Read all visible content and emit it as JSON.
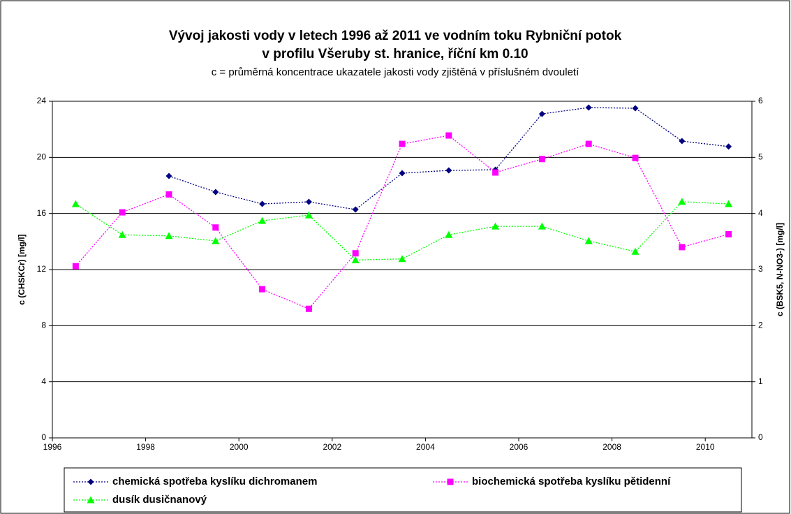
{
  "chart_data": {
    "type": "line",
    "title": "Vývoj jakosti vody v letech 1996 až 2011 ve vodním toku Rybniční potok",
    "title2": "v profilu Všeruby st. hranice, říční km 0.10",
    "subtitle": "c = průměrná koncentrace ukazatele jakosti vody zjištěná v příslušném dvouletí",
    "ylabel": "c (CHSKCr) [mg/l]",
    "y2label": "c (BSK5, N-NO3-) [mg/l]",
    "x": [
      1996.5,
      1997.5,
      1998.5,
      1999.5,
      2000.5,
      2001.5,
      2002.5,
      2003.5,
      2004.5,
      2005.5,
      2006.5,
      2007.5,
      2008.5,
      2009.5,
      2010.5
    ],
    "xlim": [
      1996,
      2011
    ],
    "xticks": [
      1996,
      1998,
      2000,
      2002,
      2004,
      2006,
      2008,
      2010
    ],
    "ylim": [
      0,
      24
    ],
    "yticks": [
      0,
      4,
      8,
      12,
      16,
      20,
      24
    ],
    "y2lim": [
      0,
      6
    ],
    "y2ticks": [
      0,
      1,
      2,
      3,
      4,
      5,
      6
    ],
    "grid": true,
    "series": [
      {
        "name": "chemická spotřeba kyslíku dichromanem",
        "color": "#000080",
        "marker": "diamond",
        "values": [
          null,
          null,
          18.67,
          17.53,
          16.68,
          16.83,
          16.28,
          18.87,
          19.07,
          19.12,
          23.1,
          23.55,
          23.5,
          21.16,
          20.77
        ]
      },
      {
        "name": "biochemická spotřeba kyslíku pětidenní",
        "color": "#ff00ff",
        "marker": "square",
        "axis": "y2",
        "values": [
          3.06,
          4.02,
          4.34,
          3.75,
          2.65,
          2.3,
          3.29,
          5.24,
          5.39,
          4.73,
          4.97,
          5.24,
          4.99,
          3.4,
          3.63
        ]
      },
      {
        "name": "dusík dusičnanový",
        "color": "#00ff00",
        "marker": "triangle",
        "axis": "y2",
        "values": [
          4.17,
          3.62,
          3.6,
          3.51,
          3.87,
          3.97,
          3.17,
          3.19,
          3.62,
          3.77,
          3.77,
          3.51,
          3.32,
          4.21,
          4.17
        ]
      }
    ]
  }
}
